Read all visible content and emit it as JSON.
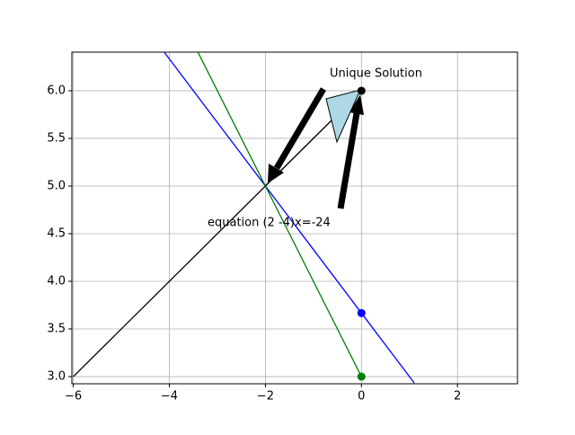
{
  "chart_data": {
    "type": "line",
    "xlim": [
      -6.03,
      3.25
    ],
    "ylim": [
      2.925,
      6.405
    ],
    "xticks": [
      {
        "value": -6,
        "label": "−6"
      },
      {
        "value": -4,
        "label": "−4"
      },
      {
        "value": -2,
        "label": "−2"
      },
      0,
      2
    ],
    "yticks": [
      {
        "value": 3,
        "label": "3.0"
      },
      3.5,
      {
        "value": 4,
        "label": "4.0"
      },
      4.5,
      {
        "value": 5,
        "label": "5.0"
      },
      5.5,
      {
        "value": 6,
        "label": "6.0"
      }
    ],
    "grid": true,
    "series": [
      {
        "color": "#000000",
        "x": [
          -6,
          0
        ],
        "values": [
          3,
          6
        ]
      },
      {
        "color": "#0000ff",
        "x": [
          -4.1,
          0,
          1.1
        ],
        "values": [
          6.4,
          3.667,
          2.933
        ]
      },
      {
        "color": "#008000",
        "x": [
          -3.4,
          0
        ],
        "values": [
          6.4,
          3
        ]
      }
    ],
    "points": {
      "x": [
        0,
        0,
        0
      ],
      "values": [
        6,
        3.667,
        3
      ],
      "colors": [
        "#000000",
        "#0000ff",
        "#008000"
      ]
    },
    "annotations": [
      "Unique Solution",
      "equation (2 -4)x=-24"
    ]
  }
}
